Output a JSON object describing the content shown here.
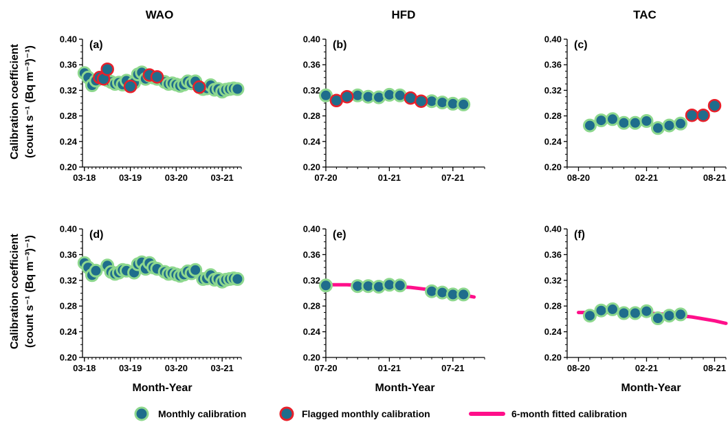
{
  "figure": {
    "column_titles": [
      "WAO",
      "HFD",
      "TAC"
    ],
    "y_label_line1": "Calibration coefficient",
    "y_label_line2": "(count s⁻¹ (Bq m⁻³)⁻¹)",
    "x_label": "Month-Year",
    "legend": [
      {
        "label": "Monthly calibration",
        "kind": "point",
        "fill": "#1f6d8c",
        "edge": "#8ed88e"
      },
      {
        "label": "Flagged monthly calibration",
        "kind": "point",
        "fill": "#1f6d8c",
        "edge": "#e8202a"
      },
      {
        "label": "6-month fitted calibration",
        "kind": "line",
        "color": "#ff0f8a"
      }
    ],
    "colors": {
      "point_fill": "#1f6d8c",
      "normal_edge": "#8ed88e",
      "flag_edge": "#e8202a",
      "fit_line": "#ff0f8a",
      "axis": "#000000"
    }
  },
  "chart_data": [
    {
      "panel": "(a)",
      "site": "WAO",
      "type": "scatter",
      "x_unit": "months since 03-18",
      "xlim": [
        -0.5,
        41
      ],
      "x_ticks": [
        [
          0,
          "03-18"
        ],
        [
          12,
          "03-19"
        ],
        [
          24,
          "03-20"
        ],
        [
          36,
          "03-21"
        ]
      ],
      "ylim": [
        0.2,
        0.4
      ],
      "y_ticks": [
        "0.20",
        "0.24",
        "0.28",
        "0.32",
        "0.36",
        "0.40"
      ],
      "series": [
        {
          "name": "Monthly calibration",
          "x": [
            0,
            1,
            2,
            3,
            6,
            7,
            8,
            9,
            10,
            11,
            13,
            14,
            15,
            16,
            17,
            18,
            19,
            21,
            22,
            23,
            24,
            25,
            26,
            27,
            28,
            29,
            31,
            32,
            33,
            34,
            35,
            36,
            37,
            38,
            39,
            40
          ],
          "y": [
            0.347,
            0.34,
            0.328,
            0.335,
            0.336,
            0.333,
            0.33,
            0.332,
            0.329,
            0.335,
            0.332,
            0.345,
            0.348,
            0.338,
            0.343,
            0.34,
            0.338,
            0.333,
            0.33,
            0.331,
            0.329,
            0.327,
            0.329,
            0.334,
            0.331,
            0.334,
            0.322,
            0.323,
            0.328,
            0.321,
            0.322,
            0.318,
            0.321,
            0.322,
            0.323,
            0.322
          ]
        },
        {
          "name": "Flagged monthly calibration",
          "x": [
            4,
            5,
            6,
            12,
            17,
            19,
            30
          ],
          "y": [
            0.34,
            0.338,
            0.353,
            0.326,
            0.344,
            0.341,
            0.325
          ]
        }
      ]
    },
    {
      "panel": "(b)",
      "site": "HFD",
      "type": "scatter",
      "x_unit": "months since 07-20",
      "xlim": [
        0,
        15
      ],
      "x_ticks": [
        [
          0,
          "07-20"
        ],
        [
          6,
          "01-21"
        ],
        [
          12,
          "07-21"
        ]
      ],
      "ylim": [
        0.2,
        0.4
      ],
      "y_ticks": [
        "0.20",
        "0.24",
        "0.28",
        "0.32",
        "0.36",
        "0.40"
      ],
      "series": [
        {
          "name": "Monthly calibration",
          "x": [
            0,
            3,
            4,
            5,
            6,
            7,
            10,
            11,
            12,
            13
          ],
          "y": [
            0.312,
            0.312,
            0.31,
            0.309,
            0.313,
            0.312,
            0.303,
            0.301,
            0.299,
            0.298
          ]
        },
        {
          "name": "Flagged monthly calibration",
          "x": [
            1,
            2,
            8,
            9
          ],
          "y": [
            0.304,
            0.31,
            0.308,
            0.303
          ]
        }
      ]
    },
    {
      "panel": "(c)",
      "site": "TAC",
      "type": "scatter",
      "x_unit": "months since 08-20",
      "xlim": [
        -1,
        13
      ],
      "x_ticks": [
        [
          0,
          "08-20"
        ],
        [
          6,
          "02-21"
        ],
        [
          12,
          "08-21"
        ]
      ],
      "ylim": [
        0.2,
        0.4
      ],
      "y_ticks": [
        "0.20",
        "0.24",
        "0.28",
        "0.32",
        "0.36",
        "0.40"
      ],
      "series": [
        {
          "name": "Monthly calibration",
          "x": [
            1,
            2,
            3,
            4,
            5,
            6,
            7,
            8,
            9
          ],
          "y": [
            0.265,
            0.273,
            0.275,
            0.269,
            0.269,
            0.272,
            0.261,
            0.265,
            0.268
          ]
        },
        {
          "name": "Flagged monthly calibration",
          "x": [
            10,
            11,
            12
          ],
          "y": [
            0.281,
            0.281,
            0.296
          ]
        }
      ]
    },
    {
      "panel": "(d)",
      "site": "WAO",
      "type": "scatter",
      "x_unit": "months since 03-18",
      "xlim": [
        -0.5,
        41
      ],
      "x_ticks": [
        [
          0,
          "03-18"
        ],
        [
          12,
          "03-19"
        ],
        [
          24,
          "03-20"
        ],
        [
          36,
          "03-21"
        ]
      ],
      "ylim": [
        0.2,
        0.4
      ],
      "y_ticks": [
        "0.20",
        "0.24",
        "0.28",
        "0.32",
        "0.36",
        "0.40"
      ],
      "series": [
        {
          "name": "Monthly calibration",
          "x": [
            0,
            1,
            2,
            3,
            6,
            7,
            8,
            9,
            10,
            11,
            13,
            14,
            15,
            16,
            17,
            18,
            19,
            21,
            22,
            23,
            24,
            25,
            26,
            27,
            28,
            29,
            31,
            32,
            33,
            34,
            35,
            36,
            37,
            38,
            39,
            40
          ],
          "y": [
            0.347,
            0.34,
            0.328,
            0.335,
            0.343,
            0.333,
            0.33,
            0.332,
            0.336,
            0.335,
            0.332,
            0.345,
            0.348,
            0.338,
            0.347,
            0.34,
            0.338,
            0.333,
            0.33,
            0.331,
            0.329,
            0.327,
            0.329,
            0.334,
            0.331,
            0.336,
            0.322,
            0.323,
            0.328,
            0.321,
            0.322,
            0.318,
            0.321,
            0.322,
            0.323,
            0.322
          ]
        },
        {
          "name": "6-month fitted calibration",
          "style": "line",
          "x": [
            0,
            2,
            4,
            6,
            8,
            10,
            12,
            14,
            16,
            18,
            20,
            22,
            24,
            26,
            28,
            30,
            32,
            34,
            36,
            38,
            40
          ],
          "y": [
            0.351,
            0.342,
            0.338,
            0.337,
            0.335,
            0.335,
            0.336,
            0.338,
            0.34,
            0.339,
            0.336,
            0.334,
            0.332,
            0.331,
            0.33,
            0.327,
            0.324,
            0.322,
            0.321,
            0.321,
            0.321
          ]
        }
      ]
    },
    {
      "panel": "(e)",
      "site": "HFD",
      "type": "scatter",
      "x_unit": "months since 07-20",
      "xlim": [
        0,
        15
      ],
      "x_ticks": [
        [
          0,
          "07-20"
        ],
        [
          6,
          "01-21"
        ],
        [
          12,
          "07-21"
        ]
      ],
      "ylim": [
        0.2,
        0.4
      ],
      "y_ticks": [
        "0.20",
        "0.24",
        "0.28",
        "0.32",
        "0.36",
        "0.40"
      ],
      "series": [
        {
          "name": "Monthly calibration",
          "x": [
            0,
            3,
            4,
            5,
            6,
            7,
            10,
            11,
            12,
            13
          ],
          "y": [
            0.312,
            0.311,
            0.311,
            0.31,
            0.313,
            0.312,
            0.303,
            0.301,
            0.298,
            0.298
          ]
        },
        {
          "name": "6-month fitted calibration",
          "style": "line",
          "x": [
            0,
            2,
            4,
            6,
            8,
            10,
            12,
            14
          ],
          "y": [
            0.313,
            0.313,
            0.312,
            0.311,
            0.309,
            0.305,
            0.3,
            0.294
          ]
        }
      ]
    },
    {
      "panel": "(f)",
      "site": "TAC",
      "type": "scatter",
      "x_unit": "months since 08-20",
      "xlim": [
        -1,
        13
      ],
      "x_ticks": [
        [
          0,
          "08-20"
        ],
        [
          6,
          "02-21"
        ],
        [
          12,
          "08-21"
        ]
      ],
      "ylim": [
        0.2,
        0.4
      ],
      "y_ticks": [
        "0.20",
        "0.24",
        "0.28",
        "0.32",
        "0.36",
        "0.40"
      ],
      "series": [
        {
          "name": "Monthly calibration",
          "x": [
            1,
            2,
            3,
            4,
            5,
            6,
            7,
            8,
            9
          ],
          "y": [
            0.265,
            0.273,
            0.275,
            0.269,
            0.269,
            0.272,
            0.261,
            0.265,
            0.267
          ]
        },
        {
          "name": "6-month fitted calibration",
          "style": "line",
          "x": [
            0,
            2,
            4,
            6,
            8,
            10,
            12,
            13
          ],
          "y": [
            0.27,
            0.27,
            0.27,
            0.269,
            0.267,
            0.263,
            0.257,
            0.253
          ]
        }
      ]
    }
  ]
}
